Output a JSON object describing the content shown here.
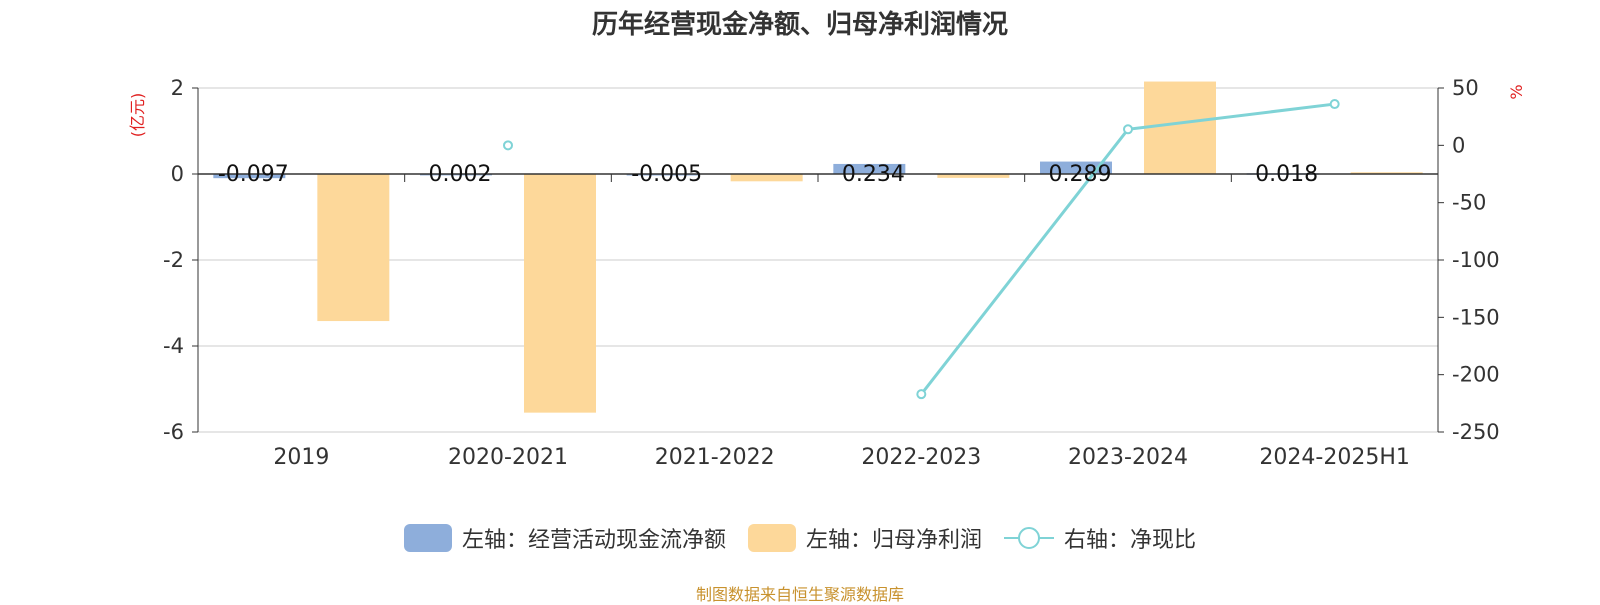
{
  "title": "历年经营现金净额、归母净利润情况",
  "source": "制图数据来自恒生聚源数据库",
  "chart_data": {
    "type": "bar",
    "categories": [
      "2019",
      "2020-2021",
      "2021-2022",
      "2022-2023",
      "2023-2024",
      "2024-2025H1"
    ],
    "y_left": {
      "label": "(亿元)",
      "ylim": [
        -6,
        2
      ],
      "ticks": [
        "2",
        "0",
        "-2",
        "-4",
        "-6"
      ]
    },
    "y_right": {
      "label": "%",
      "ylim": [
        -250,
        50
      ],
      "ticks": [
        "50",
        "0",
        "-50",
        "-100",
        "-150",
        "-200",
        "-250"
      ]
    },
    "series": [
      {
        "name": "左轴：经营活动现金流净额",
        "type": "bar",
        "axis": "left",
        "color": "#8eaedb",
        "values": [
          -0.097,
          0.002,
          -0.005,
          0.234,
          0.289,
          0.018
        ],
        "labels": [
          "-0.097",
          "0.002",
          "-0.005",
          "0.234",
          "0.289",
          "0.018"
        ]
      },
      {
        "name": "左轴：归母净利润",
        "type": "bar",
        "axis": "left",
        "color": "#fdd89a",
        "values": [
          -3.42,
          -5.55,
          -0.17,
          -0.09,
          2.15,
          0.04
        ]
      },
      {
        "name": "右轴：净现比",
        "type": "line",
        "axis": "right",
        "color": "#7fd3d6",
        "values": [
          null,
          0,
          null,
          -217,
          14,
          36
        ]
      }
    ],
    "grid": true,
    "legend_position": "bottom"
  },
  "colors": {
    "grid": "#cccccc",
    "right_axis_label": "#e02020",
    "source": "#c8922e"
  }
}
